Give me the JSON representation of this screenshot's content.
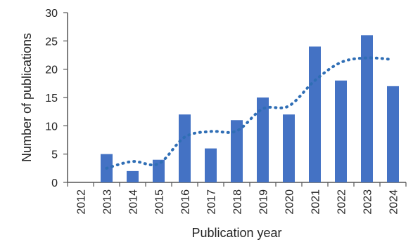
{
  "chart_data": {
    "type": "bar",
    "title": "",
    "xlabel": "Publication year",
    "ylabel": "Number of publications",
    "categories": [
      "2012",
      "2013",
      "2014",
      "2015",
      "2016",
      "2017",
      "2018",
      "2019",
      "2020",
      "2021",
      "2022",
      "2023",
      "2024"
    ],
    "series": [
      {
        "values": [
          0,
          5,
          2,
          4,
          12,
          6,
          11,
          15,
          12,
          24,
          18,
          26,
          17
        ],
        "color": "#4472C4"
      }
    ],
    "trendline": {
      "style": "dotted",
      "color": "#2F6EB5",
      "values": [
        null,
        2.5,
        3.7,
        3.3,
        8.0,
        9.0,
        9.1,
        13.0,
        13.5,
        18.0,
        21.2,
        22.0,
        21.7
      ]
    },
    "ylim": [
      0,
      30
    ],
    "yticks": [
      0,
      5,
      10,
      15,
      20,
      25,
      30
    ],
    "grid": false,
    "legend": "none"
  }
}
